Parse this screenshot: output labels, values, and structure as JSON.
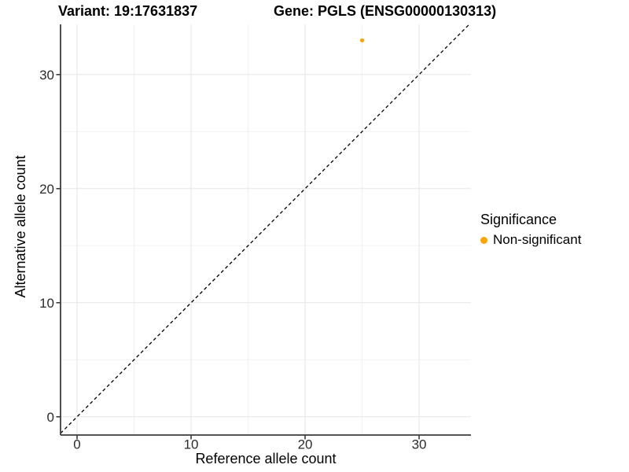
{
  "titles": {
    "variant": "Variant: 19:17631837",
    "gene": "Gene: PGLS (ENSG00000130313)"
  },
  "legend": {
    "title": "Significance",
    "items": [
      {
        "label": "Non-significant",
        "color": "#FFA500"
      }
    ]
  },
  "chart_data": {
    "type": "scatter",
    "xlabel": "Reference allele count",
    "ylabel": "Alternative allele count",
    "xlim": [
      -1.45,
      34.55
    ],
    "ylim": [
      -1.6,
      34.4
    ],
    "xticks": [
      0,
      10,
      20,
      30
    ],
    "yticks": [
      0,
      10,
      20,
      30
    ],
    "minor_xticks": [
      5,
      15,
      25
    ],
    "minor_yticks": [
      5,
      15,
      25
    ],
    "grid": true,
    "legend_position": "right",
    "points": [
      {
        "x": 25,
        "y": 33,
        "significance": "Non-significant",
        "color": "#FFA500"
      }
    ],
    "identity_line": {
      "style": "dashed",
      "color": "#000000"
    },
    "colors": {
      "point": "#FFA500",
      "grid_major": "#e6e6e6",
      "grid_minor": "#f2f2f2",
      "axis": "#3d3d3d",
      "tick_text": "#2b2b2b"
    }
  }
}
